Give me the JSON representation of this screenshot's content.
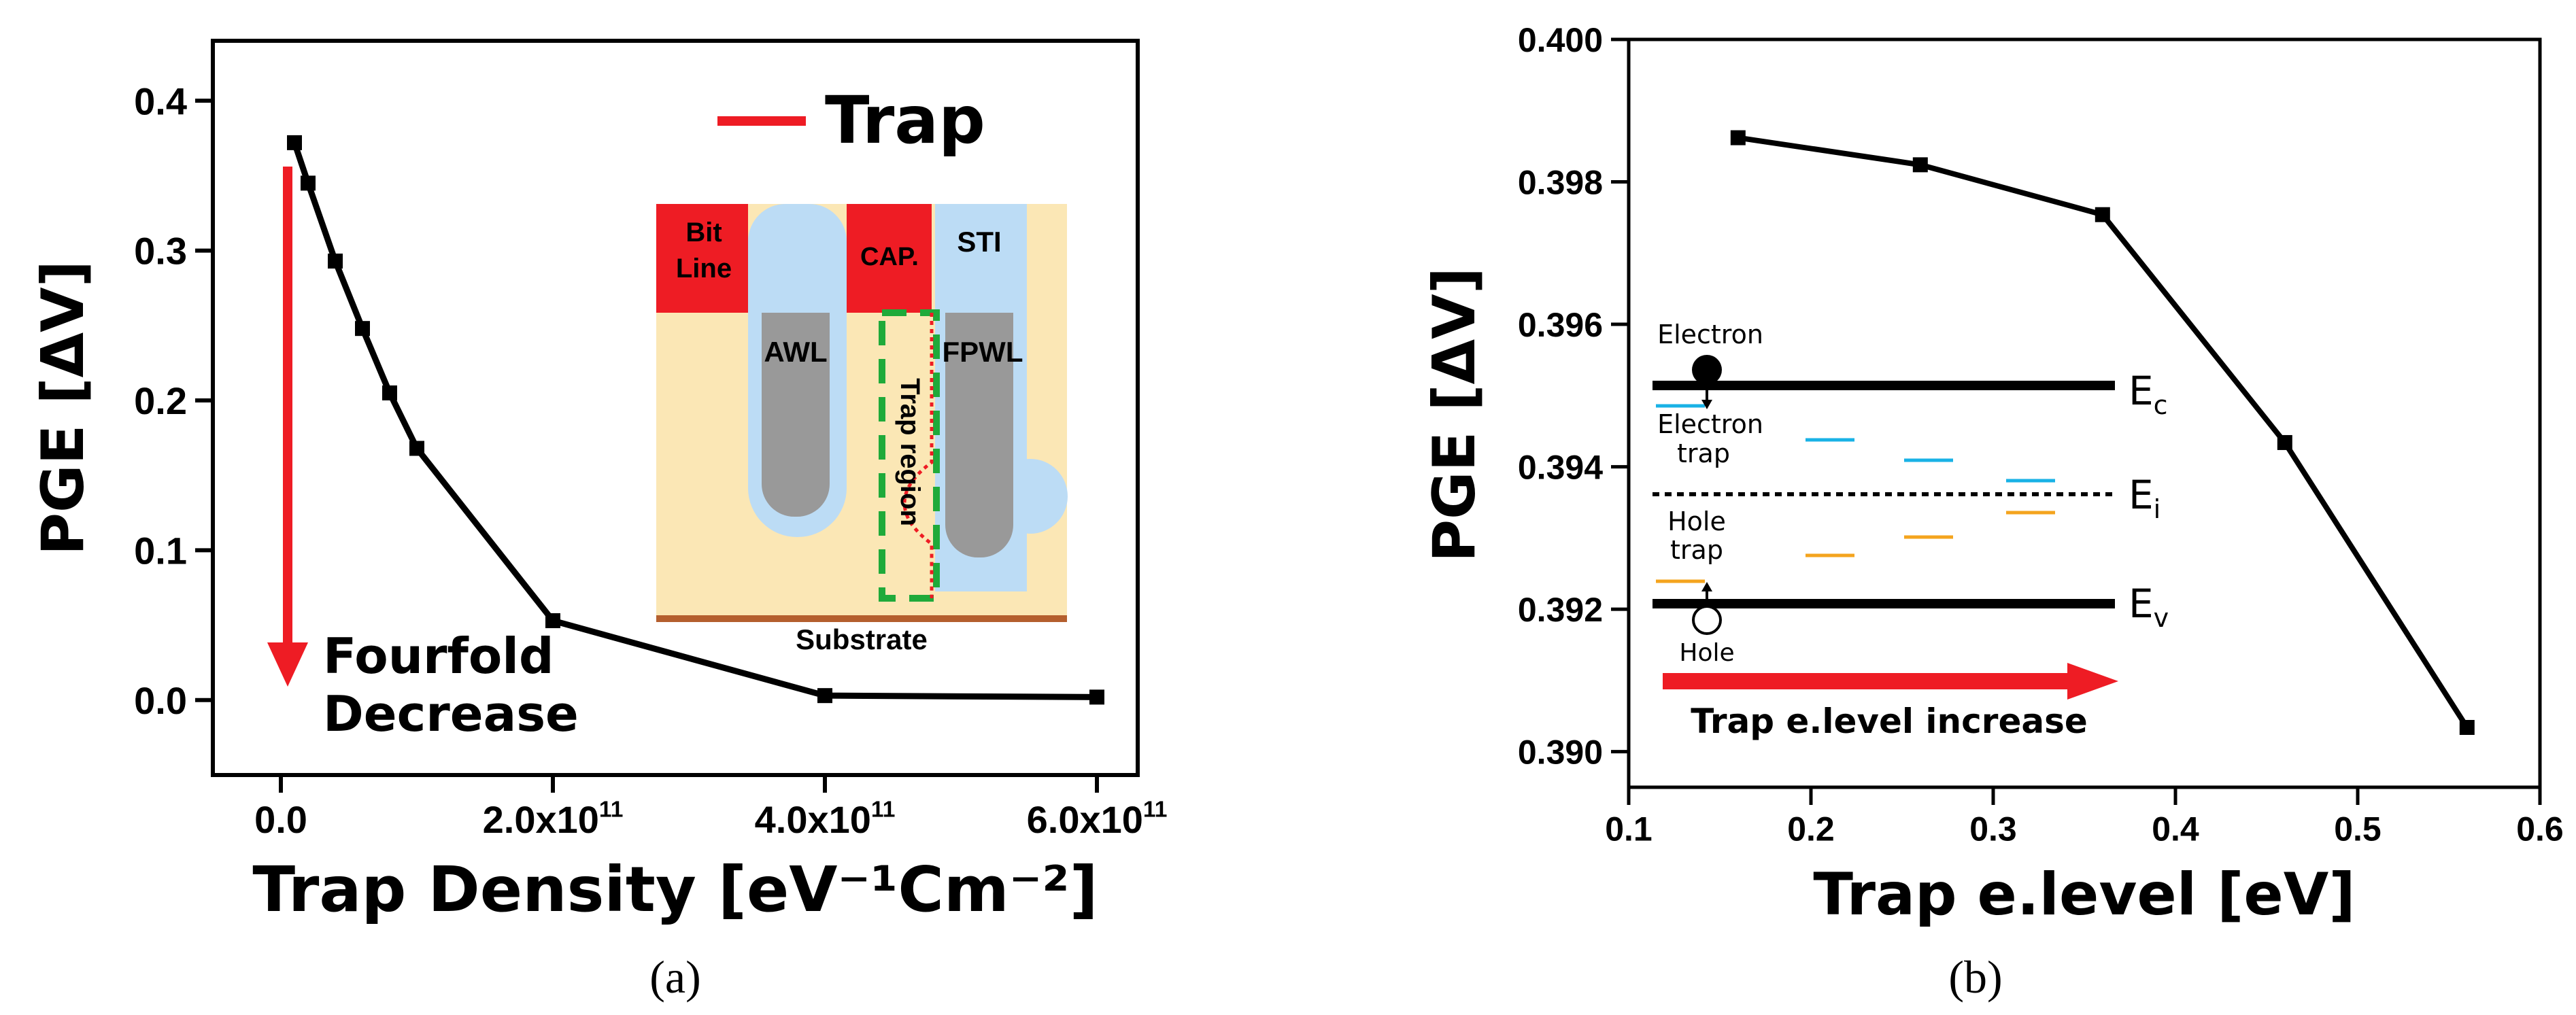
{
  "colors": {
    "red": "#ee1c24",
    "line": "#000000",
    "cream": "#fbe7b5",
    "lightblue": "#bcdcf5",
    "gray": "#999999",
    "green": "#1faa3a",
    "brown": "#b45f2e",
    "cyan": "#19b2e6",
    "orange": "#f4a41e"
  },
  "chart_data": [
    {
      "panel": "a",
      "type": "line",
      "caption": "(a)",
      "xlabel": "Trap Density [eV⁻¹Cm⁻²]",
      "ylabel": "PGE [ΔV]",
      "xlim": [
        -50000000000.0,
        630000000000.0
      ],
      "ylim": [
        -0.05,
        0.44
      ],
      "xticks": [
        0,
        200000000000.0,
        400000000000.0,
        600000000000.0
      ],
      "xtick_labels": [
        "0.0",
        "2.0x10",
        "4.0x10",
        "6.0x10"
      ],
      "xtick_exp": "11",
      "yticks": [
        0.0,
        0.1,
        0.2,
        0.3,
        0.4
      ],
      "ytick_labels": [
        "0.0",
        "0.1",
        "0.2",
        "0.3",
        "0.4"
      ],
      "x": [
        10000000000.0,
        20000000000.0,
        40000000000.0,
        60000000000.0,
        80000000000.0,
        100000000000.0,
        200000000000.0,
        400000000000.0,
        600000000000.0
      ],
      "y": [
        0.372,
        0.345,
        0.293,
        0.248,
        0.205,
        0.168,
        0.053,
        0.003,
        0.002
      ],
      "annotations": {
        "arrow_label_1": "Fourfold",
        "arrow_label_2": "Decrease"
      },
      "legend": {
        "label": "Trap",
        "placement": "top-right"
      },
      "inset": {
        "bit_line_1": "Bit",
        "bit_line_2": "Line",
        "cap": "CAP.",
        "sti": "STI",
        "awl": "AWL",
        "fpwl": "FPWL",
        "trap_region": "Trap region",
        "substrate": "Substrate"
      }
    },
    {
      "panel": "b",
      "type": "line",
      "caption": "(b)",
      "xlabel": "Trap e.level [eV]",
      "ylabel": "PGE [ΔV]",
      "xlim": [
        0.1,
        0.6
      ],
      "ylim": [
        0.3895,
        0.4
      ],
      "xticks": [
        0.1,
        0.2,
        0.3,
        0.4,
        0.5,
        0.6
      ],
      "xtick_labels": [
        "0.1",
        "0.2",
        "0.3",
        "0.4",
        "0.5",
        "0.6"
      ],
      "yticks": [
        0.39,
        0.392,
        0.394,
        0.396,
        0.398,
        0.4
      ],
      "ytick_labels": [
        "0.390",
        "0.392",
        "0.394",
        "0.396",
        "0.398",
        "0.400"
      ],
      "x": [
        0.16,
        0.26,
        0.36,
        0.46,
        0.56
      ],
      "y": [
        0.39862,
        0.39824,
        0.39754,
        0.39434,
        0.39034
      ],
      "inset": {
        "electron": "Electron",
        "electron_trap_1": "Electron",
        "electron_trap_2": "trap",
        "hole_trap_1": "Hole",
        "hole_trap_2": "trap",
        "hole": "Hole",
        "ec": "E",
        "ec_sub": "c",
        "ei": "E",
        "ei_sub": "i",
        "ev": "E",
        "ev_sub": "v",
        "arrow_label": "Trap e.level increase"
      }
    }
  ]
}
